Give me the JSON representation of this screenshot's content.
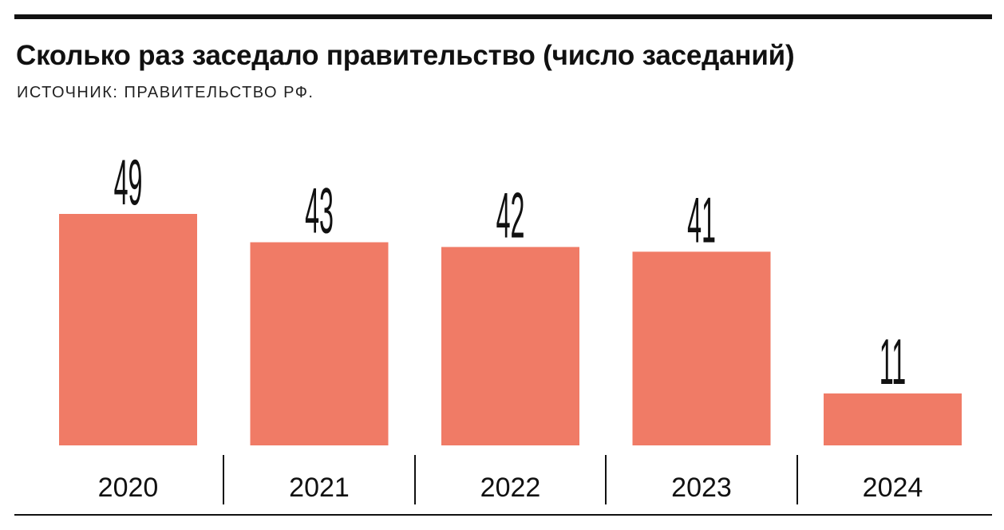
{
  "header": {
    "title": "Сколько раз заседало правительство (число заседаний)",
    "source": "ИСТОЧНИК: ПРАВИТЕЛЬСТВО РФ."
  },
  "colors": {
    "bar": "#f07b66",
    "text": "#111111",
    "rule": "#111111"
  },
  "chart_data": {
    "type": "bar",
    "categories": [
      "2020",
      "2021",
      "2022",
      "2023",
      "2024"
    ],
    "values": [
      49,
      43,
      42,
      41,
      11
    ],
    "value_labels": [
      "49",
      "43",
      "42",
      "41",
      "11"
    ],
    "title": "Сколько раз заседало правительство (число заседаний)",
    "subtitle": "ИСТОЧНИК: ПРАВИТЕЛЬСТВО РФ.",
    "xlabel": "",
    "ylabel": "",
    "ylim": [
      0,
      49
    ],
    "grid": false,
    "legend": "none"
  }
}
